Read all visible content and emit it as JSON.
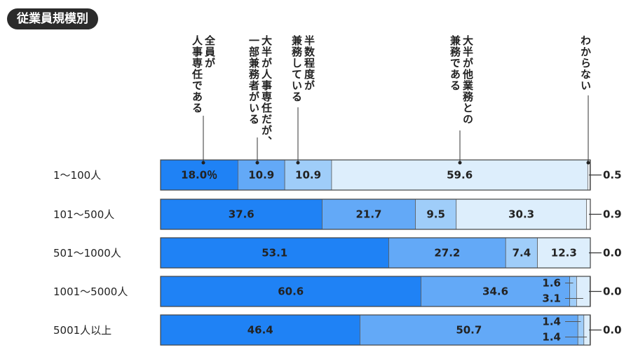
{
  "header": {
    "tag": "従業員規模別"
  },
  "chart_data": {
    "type": "bar",
    "orientation": "horizontal",
    "stacked": true,
    "percent": true,
    "categories": [
      "1～100人",
      "101～500人",
      "501～1000人",
      "1001～5000人",
      "5001人以上"
    ],
    "series": [
      {
        "name": "全員が人事専任である",
        "values": [
          18.0,
          37.6,
          53.1,
          60.6,
          46.4
        ],
        "color": "#1f82f5"
      },
      {
        "name": "大半が人事専任だが、一部兼務者がいる",
        "values": [
          10.9,
          21.7,
          27.2,
          34.6,
          50.7
        ],
        "color": "#63a9f7"
      },
      {
        "name": "半数程度が兼務している",
        "values": [
          10.9,
          9.5,
          7.4,
          1.6,
          1.4
        ],
        "color": "#9fcdf9"
      },
      {
        "name": "大半が他業務との兼務である",
        "values": [
          59.6,
          30.3,
          12.3,
          3.1,
          1.4
        ],
        "color": "#ddeefc"
      },
      {
        "name": "わからない",
        "values": [
          0.5,
          0.9,
          0.0,
          0.0,
          0.0
        ],
        "color": "#f4f8fc"
      }
    ],
    "value_labels": [
      [
        "18.0％",
        "10.9",
        "10.9",
        "59.6",
        "0.5"
      ],
      [
        "37.6",
        "21.7",
        "9.5",
        "30.3",
        "0.9"
      ],
      [
        "53.1",
        "27.2",
        "7.4",
        "12.3",
        "0.0"
      ],
      [
        "60.6",
        "34.6",
        "1.6",
        "3.1",
        "0.0"
      ],
      [
        "46.4",
        "50.7",
        "1.4",
        "1.4",
        "0.0"
      ]
    ],
    "legend_placement": "vertical labels above first bar with leader lines",
    "grid": false,
    "xlim": [
      0,
      100
    ]
  }
}
